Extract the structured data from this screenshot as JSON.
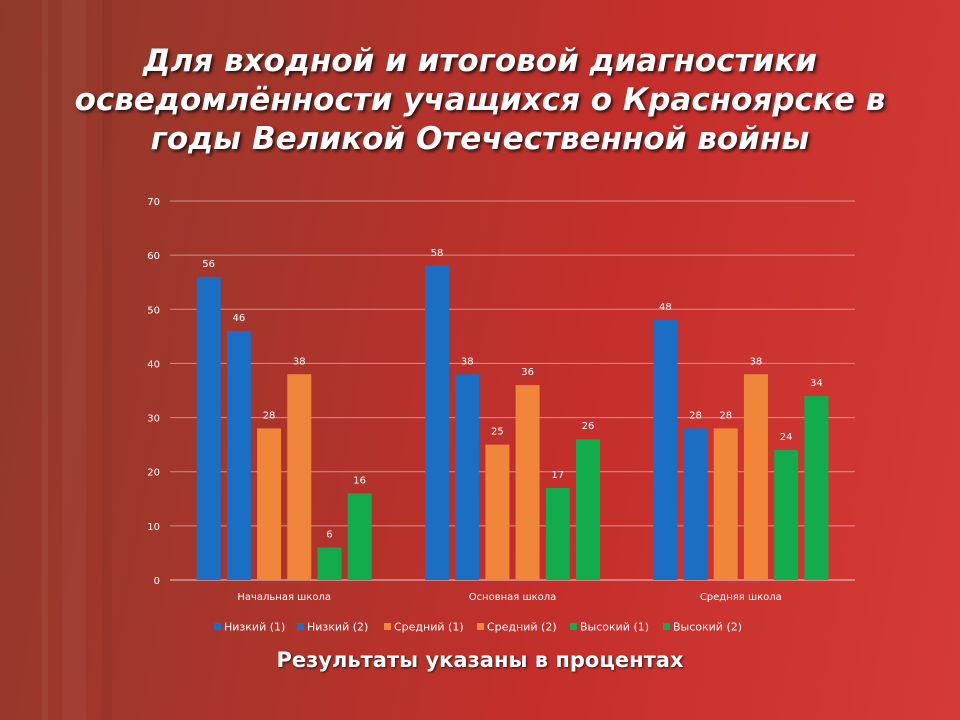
{
  "title_lines": [
    "Для входной и итоговой диагностики",
    "осведомлённости учащихся о Красноярске в",
    "годы Великой Отечественной войны"
  ],
  "footer": "Результаты указаны в процентах",
  "chart_data": {
    "type": "bar",
    "categories": [
      "Начальная школа",
      "Основная школа",
      "Средняя школа"
    ],
    "series": [
      {
        "name": "Низкий (1)",
        "color": "#1a6ec4",
        "values": [
          56,
          58,
          48
        ]
      },
      {
        "name": "Низкий (2)",
        "color": "#1a6ec4",
        "values": [
          46,
          38,
          28
        ]
      },
      {
        "name": "Средний (1)",
        "color": "#f0863a",
        "values": [
          28,
          25,
          28
        ]
      },
      {
        "name": "Средний (2)",
        "color": "#f0863a",
        "values": [
          38,
          36,
          38
        ]
      },
      {
        "name": "Высокий (1)",
        "color": "#12ac4c",
        "values": [
          6,
          17,
          24
        ]
      },
      {
        "name": "Высокий (2)",
        "color": "#12ac4c",
        "values": [
          16,
          26,
          34
        ]
      }
    ],
    "yticks": [
      0,
      10,
      20,
      30,
      40,
      50,
      60,
      70
    ],
    "ylim": [
      0,
      70
    ],
    "grid": true,
    "legend": "bottom"
  }
}
